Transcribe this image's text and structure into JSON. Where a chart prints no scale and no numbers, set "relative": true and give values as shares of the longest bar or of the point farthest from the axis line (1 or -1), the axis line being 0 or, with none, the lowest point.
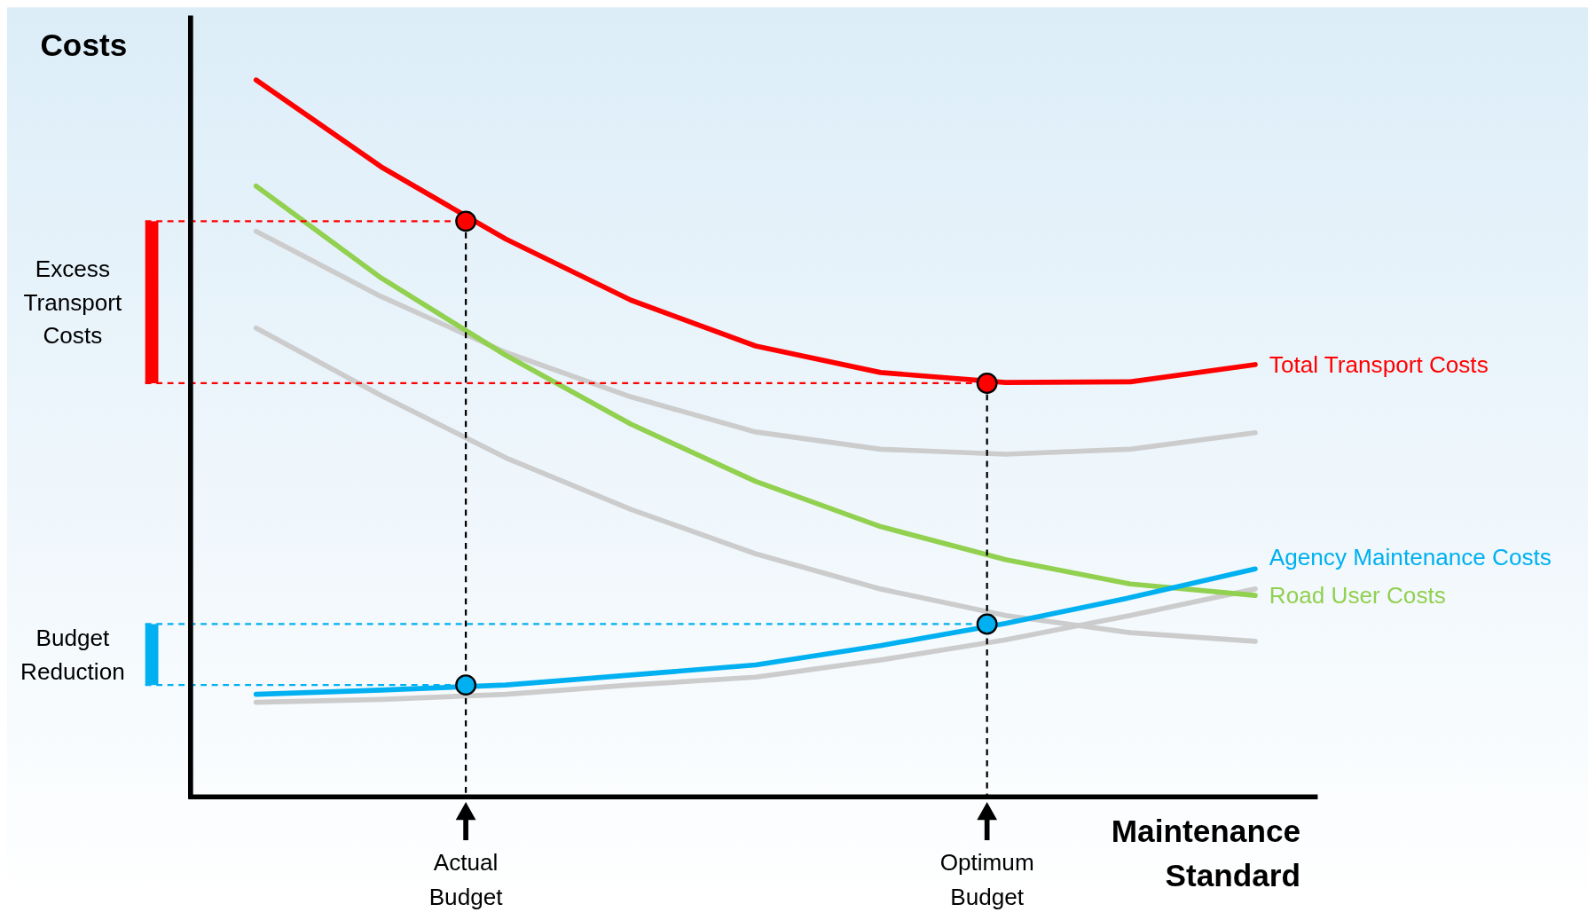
{
  "chart_data": {
    "type": "line",
    "relative": true,
    "ylabel": "Costs",
    "xlabel": "Maintenance Standard",
    "categories": [
      null,
      null,
      null,
      null,
      null,
      null,
      null,
      null,
      null
    ],
    "series": [
      {
        "color": "#cccccc",
        "values": [
          0.789,
          0.698,
          0.62,
          0.558,
          0.509,
          0.485,
          0.478,
          0.485,
          0.508
        ]
      },
      {
        "color": "#cccccc",
        "values": [
          0.654,
          0.56,
          0.473,
          0.401,
          0.339,
          0.29,
          0.253,
          0.229,
          0.217
        ]
      },
      {
        "color": "#cccccc",
        "values": [
          0.132,
          0.136,
          0.143,
          0.156,
          0.167,
          0.191,
          0.219,
          0.253,
          0.29
        ]
      },
      {
        "name": "Total Transport Costs",
        "color": "#ff0000",
        "values": [
          1.0,
          0.879,
          0.778,
          0.693,
          0.629,
          0.592,
          0.578,
          0.579,
          0.603
        ]
      },
      {
        "name": "Road User Costs",
        "color": "#92d050",
        "values": [
          0.852,
          0.724,
          0.616,
          0.52,
          0.44,
          0.377,
          0.331,
          0.297,
          0.281
        ]
      },
      {
        "name": "Agency Maintenance Costs",
        "color": "#00b0f0",
        "values": [
          0.143,
          0.149,
          0.156,
          0.17,
          0.184,
          0.211,
          0.242,
          0.278,
          0.318
        ]
      }
    ],
    "ref_lines": [
      {
        "axis": "y",
        "value": 0.803,
        "color": "#ff0000",
        "line_style": "dashed"
      },
      {
        "axis": "y",
        "value": 0.577,
        "color": "#ff0000",
        "line_style": "dashed"
      },
      {
        "axis": "y",
        "value": 0.241,
        "color": "#00b0f0",
        "line_style": "dashed"
      },
      {
        "axis": "y",
        "value": 0.156,
        "color": "#00b0f0",
        "line_style": "dashed"
      }
    ],
    "annotations": [
      "Excess Transport Costs",
      "Budget Reduction",
      "Actual Budget",
      "Optimum Budget"
    ],
    "line_style": "solid"
  }
}
